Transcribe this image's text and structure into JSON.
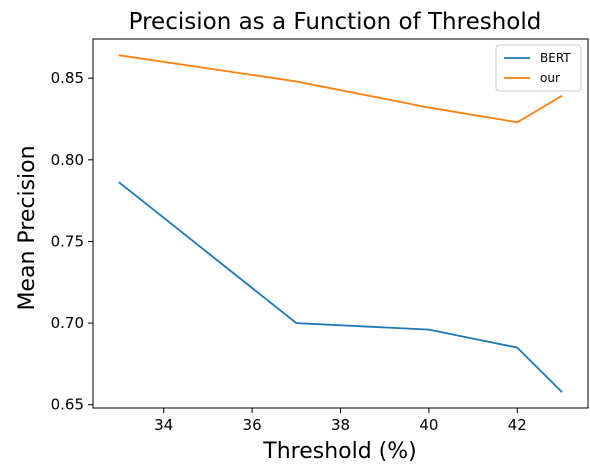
{
  "chart_data": {
    "type": "line",
    "title": "Precision as a Function of Threshold",
    "xlabel": "Threshold (%)",
    "ylabel": "Mean Precision",
    "xlim": [
      32.4,
      43.6
    ],
    "ylim": [
      0.648,
      0.874
    ],
    "xticks": [
      34,
      36,
      38,
      40,
      42
    ],
    "yticks": [
      0.65,
      0.7,
      0.75,
      0.8,
      0.85
    ],
    "xtick_labels": [
      "34",
      "36",
      "38",
      "40",
      "42"
    ],
    "ytick_labels": [
      "0.65",
      "0.70",
      "0.75",
      "0.80",
      "0.85"
    ],
    "grid": false,
    "legend_position": "top-right",
    "x": [
      33,
      37,
      40,
      42,
      43
    ],
    "series": [
      {
        "name": "BERT",
        "color": "#1f77b4",
        "values": [
          0.786,
          0.7,
          0.696,
          0.685,
          0.658
        ]
      },
      {
        "name": "our",
        "color": "#ff7f0e",
        "values": [
          0.864,
          0.848,
          0.832,
          0.823,
          0.839
        ]
      }
    ]
  }
}
